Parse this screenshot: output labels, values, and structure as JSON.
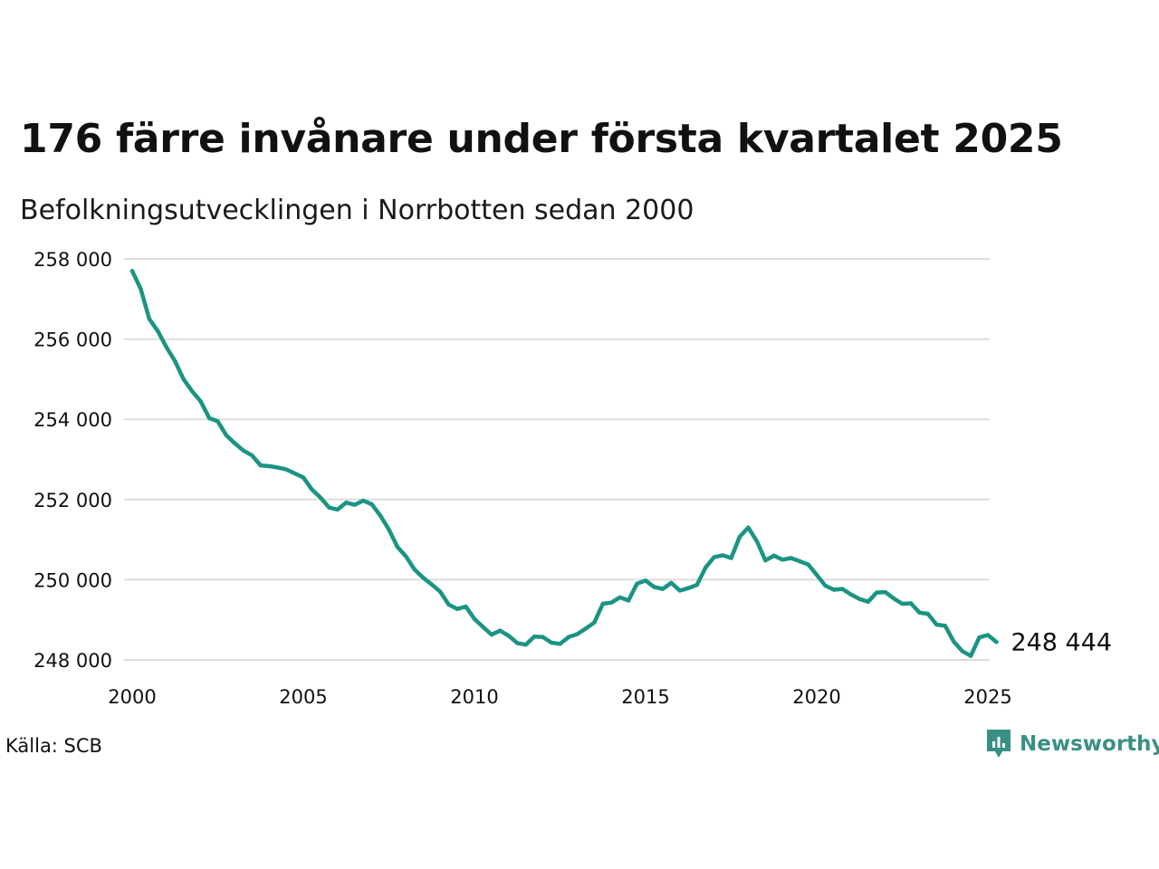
{
  "chart_data": {
    "type": "line",
    "title": "176 färre invånare under första kvartalet 2025",
    "subtitle": "Befolkningsutvecklingen i Norrbotten sedan 2000",
    "xlabel": "",
    "ylabel": "",
    "xlim": [
      2000,
      2025
    ],
    "ylim": [
      248000,
      258000
    ],
    "x_ticks": [
      2000,
      2005,
      2010,
      2015,
      2020,
      2025
    ],
    "x_tick_labels": [
      "2000",
      "2005",
      "2010",
      "2015",
      "2020",
      "2025"
    ],
    "y_ticks": [
      248000,
      250000,
      252000,
      254000,
      256000,
      258000
    ],
    "y_tick_labels": [
      "248 000",
      "250 000",
      "252 000",
      "254 000",
      "256 000",
      "258 000"
    ],
    "grid": true,
    "line_color": "#1b9483",
    "series": [
      {
        "x_start": 2000.0,
        "x_step": 0.25,
        "values": [
          257700,
          257250,
          256500,
          256200,
          255800,
          255450,
          255000,
          254700,
          254450,
          254030,
          253950,
          253600,
          253400,
          253220,
          253100,
          252850,
          252830,
          252800,
          252750,
          252650,
          252550,
          252250,
          252050,
          251800,
          251750,
          251920,
          251870,
          251970,
          251880,
          251600,
          251250,
          250820,
          250580,
          250250,
          250050,
          249880,
          249700,
          249380,
          249270,
          249330,
          249020,
          248820,
          248630,
          248730,
          248600,
          248420,
          248380,
          248580,
          248570,
          248430,
          248400,
          248570,
          248640,
          248780,
          248930,
          249400,
          249430,
          249560,
          249480,
          249900,
          249980,
          249820,
          249770,
          249920,
          249730,
          249790,
          249870,
          250300,
          250560,
          250610,
          250540,
          251070,
          251300,
          250960,
          250480,
          250600,
          250500,
          250540,
          250460,
          250380,
          250120,
          249850,
          249750,
          249770,
          249630,
          249520,
          249450,
          249680,
          249690,
          249530,
          249400,
          249410,
          249180,
          249150,
          248880,
          248850,
          248460,
          248220,
          248100,
          248560,
          248620,
          248444
        ]
      }
    ],
    "end_label": "248 444",
    "source": "Källa: SCB"
  },
  "brand": {
    "name": "Newsworthy",
    "icon": "newsworthy-logo-icon",
    "color": "#3a8f84"
  }
}
